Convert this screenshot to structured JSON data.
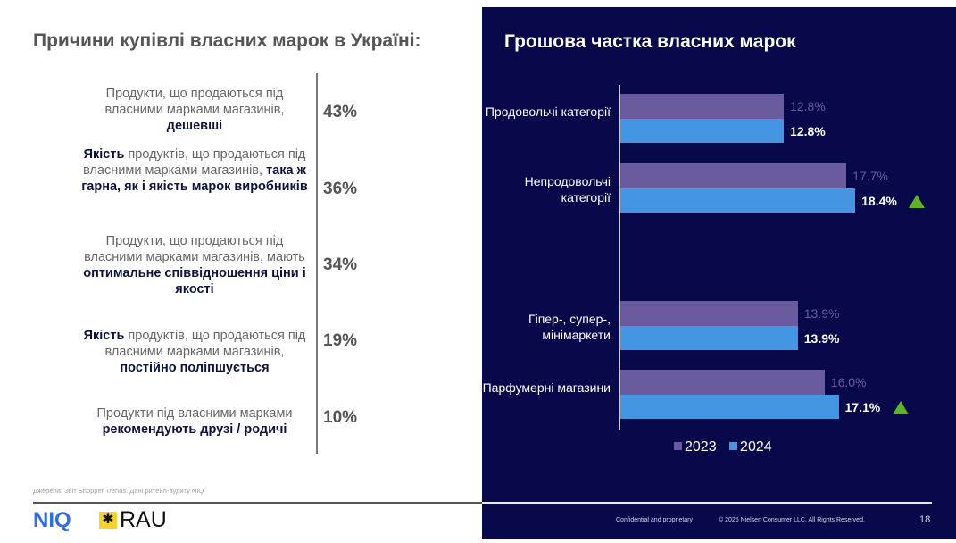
{
  "left": {
    "title": "Причини купівлі власних марок в Україні:",
    "reasons": [
      {
        "parts": [
          {
            "t": "Продукти, що продаються під власними марками магазинів, ",
            "b": false
          },
          {
            "t": "дешевші",
            "b": true
          }
        ],
        "pct": "43%"
      },
      {
        "parts": [
          {
            "t": "Якість",
            "b": true
          },
          {
            "t": " продуктів, що продаються під власними марками магазинів, ",
            "b": false
          },
          {
            "t": "така ж гарна, як і якість марок виробників",
            "b": true
          }
        ],
        "pct": "36%"
      },
      {
        "parts": [
          {
            "t": "Продукти, що продаються під власними марками магазинів, мають ",
            "b": false
          },
          {
            "t": "оптимальне співвідношення ціни і якості",
            "b": true
          }
        ],
        "pct": "34%"
      },
      {
        "parts": [
          {
            "t": "Якість",
            "b": true
          },
          {
            "t": " продуктів, що продаються під власними марками магазинів, ",
            "b": false
          },
          {
            "t": "постійно поліпшується",
            "b": true
          }
        ],
        "pct": "19%"
      },
      {
        "parts": [
          {
            "t": "Продукти під власними марками ",
            "b": false
          },
          {
            "t": "рекомендують друзі / родичі",
            "b": true
          }
        ],
        "pct": "10%"
      }
    ],
    "source": "Джерела: Звіт Shopper Trends. Дані ритейл-аудиту NIQ"
  },
  "logos": {
    "niq": "NIQ",
    "rau": "RAU",
    "rau_star": "✱"
  },
  "footer": {
    "confidential": "Confidential and proprietary",
    "copyright": "© 2025 Nielsen Consumer LLC. All Rights Reserved.",
    "page": "18"
  },
  "colors": {
    "panel": "#07094a",
    "c2023": "#6a5a9e",
    "c2024": "#4596e2",
    "up": "#5fb224"
  },
  "chart_data": {
    "type": "bar",
    "orientation": "horizontal",
    "title": "Грошова частка власних марок",
    "categories": [
      "Продовольчі категорії",
      "Непродовольчі категорії",
      "Гіпер-, супер-, мінімаркети",
      "Парфумерні магазини"
    ],
    "series": [
      {
        "name": "2023",
        "values": [
          12.8,
          17.7,
          13.9,
          16.0
        ],
        "labels": [
          "12.8%",
          "17.7%",
          "13.9%",
          "16.0%"
        ]
      },
      {
        "name": "2024",
        "values": [
          12.8,
          18.4,
          13.9,
          17.1
        ],
        "labels": [
          "12.8%",
          "18.4%",
          "13.9%",
          "17.1%"
        ]
      }
    ],
    "increase_markers": [
      false,
      true,
      false,
      true
    ],
    "unit": "%",
    "legend": "bottom"
  }
}
